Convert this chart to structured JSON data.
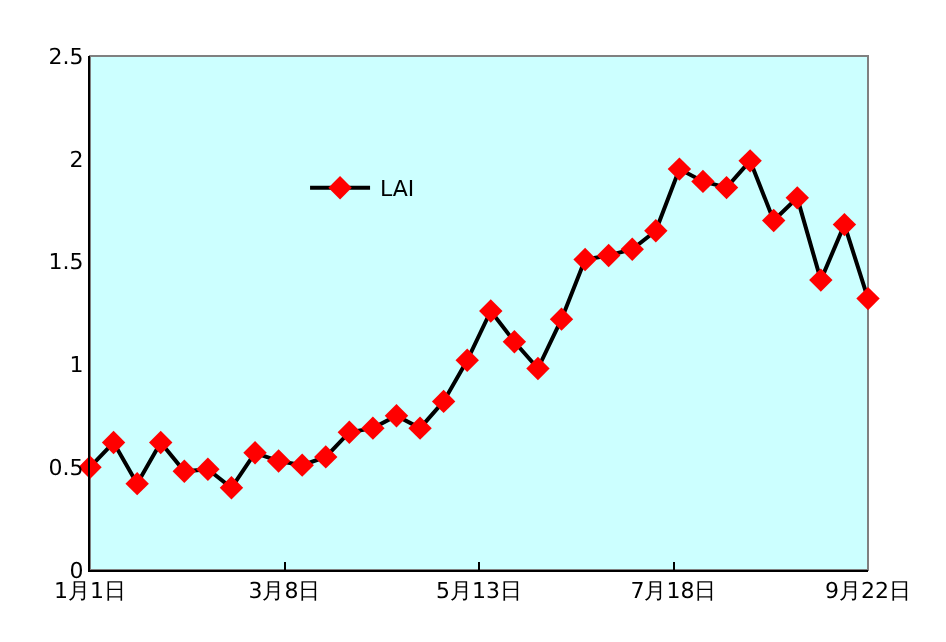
{
  "chart_data": {
    "type": "line",
    "x": [
      "--01-01",
      "--01-09",
      "--01-17",
      "--01-25",
      "--02-02",
      "--02-10",
      "--02-18",
      "--02-26",
      "--03-06",
      "--03-14",
      "--03-22",
      "--03-30",
      "--04-07",
      "--04-15",
      "--04-23",
      "--05-01",
      "--05-09",
      "--05-17",
      "--05-25",
      "--06-02",
      "--06-10",
      "--06-18",
      "--06-26",
      "--07-04",
      "--07-12",
      "--07-20",
      "--07-28",
      "--08-05",
      "--08-13",
      "--08-21",
      "--08-29",
      "--09-06",
      "--09-14",
      "--09-22"
    ],
    "series": [
      {
        "name": "LAI",
        "color": "#ff0000",
        "values": [
          0.5,
          0.62,
          0.42,
          0.62,
          0.48,
          0.49,
          0.4,
          0.57,
          0.53,
          0.51,
          0.55,
          0.67,
          0.69,
          0.75,
          0.69,
          0.82,
          1.02,
          1.26,
          1.11,
          0.98,
          1.22,
          1.51,
          1.53,
          1.56,
          1.65,
          1.95,
          1.89,
          1.86,
          1.99,
          1.7,
          1.81,
          1.41,
          1.68,
          1.32
        ]
      }
    ],
    "xlim": [
      "--01-01",
      "--09-22"
    ],
    "xticks": [
      {
        "value": "--01-01",
        "label": "1月1日"
      },
      {
        "value": "--03-08",
        "label": "3月8日"
      },
      {
        "value": "--05-13",
        "label": "5月13日"
      },
      {
        "value": "--07-18",
        "label": "7月18日"
      },
      {
        "value": "--09-22",
        "label": "9月22日"
      }
    ],
    "ylim": [
      0,
      2.5
    ],
    "yticks": [
      0,
      0.5,
      1,
      1.5,
      2,
      2.5
    ],
    "grid": false,
    "legend": "top left",
    "marker": "diamond",
    "line_style": "solid"
  }
}
